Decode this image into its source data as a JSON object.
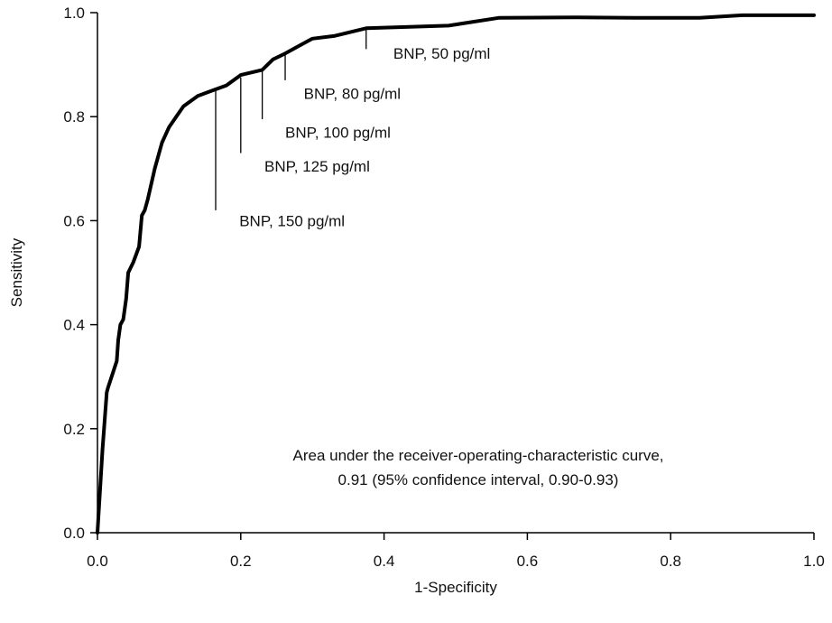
{
  "chart_data": {
    "type": "line",
    "title": "",
    "xlabel": "1-Specificity",
    "ylabel": "Sensitivity",
    "xlim": [
      0,
      1
    ],
    "ylim": [
      0,
      1
    ],
    "x_ticks": [
      "0.0",
      "0.2",
      "0.4",
      "0.6",
      "0.8",
      "1.0"
    ],
    "y_ticks": [
      "0.0",
      "0.2",
      "0.4",
      "0.6",
      "0.8",
      "1.0"
    ],
    "grid": false,
    "series": [
      {
        "color": "#000000",
        "x": [
          0.0,
          0.007,
          0.013,
          0.015,
          0.027,
          0.029,
          0.032,
          0.036,
          0.04,
          0.043,
          0.05,
          0.058,
          0.062,
          0.066,
          0.07,
          0.08,
          0.09,
          0.1,
          0.12,
          0.14,
          0.16,
          0.18,
          0.2,
          0.23,
          0.245,
          0.26,
          0.28,
          0.3,
          0.33,
          0.36,
          0.375,
          0.42,
          0.49,
          0.56,
          0.67,
          0.75,
          0.84,
          0.9,
          1.0
        ],
        "y": [
          0.0,
          0.16,
          0.27,
          0.28,
          0.33,
          0.37,
          0.4,
          0.41,
          0.45,
          0.5,
          0.52,
          0.55,
          0.61,
          0.62,
          0.64,
          0.7,
          0.75,
          0.78,
          0.82,
          0.84,
          0.85,
          0.86,
          0.88,
          0.89,
          0.91,
          0.92,
          0.935,
          0.95,
          0.955,
          0.965,
          0.97,
          0.972,
          0.975,
          0.99,
          0.991,
          0.99,
          0.99,
          0.995,
          0.995
        ]
      }
    ],
    "annotations": [
      {
        "label": "BNP, 50 pg/ml",
        "x": 0.375,
        "y_top": 0.97,
        "y_bottom": 0.93,
        "text_x": 0.413,
        "text_y": 0.922
      },
      {
        "label": "BNP, 80 pg/ml",
        "x": 0.262,
        "y_top": 0.92,
        "y_bottom": 0.87,
        "text_x": 0.288,
        "text_y": 0.845
      },
      {
        "label": "BNP, 100 pg/ml",
        "x": 0.23,
        "y_top": 0.89,
        "y_bottom": 0.795,
        "text_x": 0.262,
        "text_y": 0.77
      },
      {
        "label": "BNP, 125 pg/ml",
        "x": 0.2,
        "y_top": 0.875,
        "y_bottom": 0.73,
        "text_x": 0.233,
        "text_y": 0.705
      },
      {
        "label": "BNP, 150 pg/ml",
        "x": 0.165,
        "y_top": 0.855,
        "y_bottom": 0.62,
        "text_x": 0.198,
        "text_y": 0.6
      }
    ],
    "note": [
      "Area under the receiver-operating-characteristic curve,",
      "0.91 (95% confidence interval, 0.90-0.93)"
    ]
  }
}
